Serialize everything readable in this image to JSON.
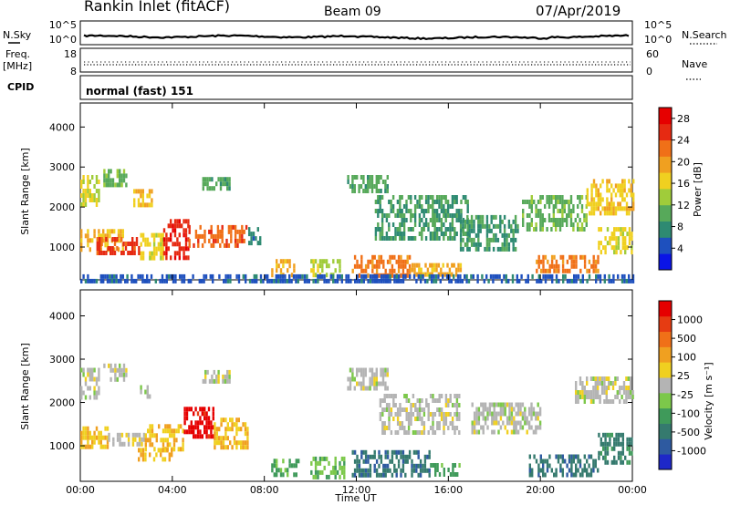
{
  "header": {
    "station": "Rankin Inlet (fitACF)",
    "beam": "Beam 09",
    "date": "07/Apr/2019"
  },
  "info_panels": {
    "nsky_label": "N.Sky",
    "nsky_ticks": [
      "10^5",
      "10^0"
    ],
    "nsearch_label": "N.Search",
    "nsearch_ticks": [
      "10^5",
      "10^0"
    ],
    "freq_label_1": "Freq.",
    "freq_label_2": "[MHz]",
    "freq_ticks": [
      "18",
      "8"
    ],
    "nave_label": "Nave",
    "nave_ticks": [
      "60",
      "0"
    ],
    "cpid_label": "CPID",
    "cpid_value": "normal (fast) 151"
  },
  "chart_data": [
    {
      "type": "heatmap",
      "title": "",
      "xlabel": "Time UT",
      "ylabel": "Slant Range [km]",
      "xlim": [
        "00:00",
        "24:00"
      ],
      "ylim": [
        180,
        4600
      ],
      "x_ticks": [
        "00:00",
        "04:00",
        "08:00",
        "12:00",
        "16:00",
        "20:00",
        "00:00"
      ],
      "y_ticks": [
        "1000",
        "2000",
        "3000",
        "4000"
      ],
      "colorbar": {
        "label": "Power [dB]",
        "ticks": [
          "4",
          "8",
          "12",
          "16",
          "20",
          "24",
          "28"
        ],
        "range": [
          0,
          30
        ],
        "colors": [
          "#0a14e6",
          "#1e50be",
          "#2e8a72",
          "#57a95a",
          "#a0cc3a",
          "#f0d020",
          "#f0a020",
          "#f07018",
          "#e62a12",
          "#e60000"
        ]
      },
      "regions": [
        {
          "t0": 0.0,
          "t1": 1.9,
          "r0": 900,
          "r1": 1450,
          "v": 18
        },
        {
          "t0": 0.7,
          "t1": 2.6,
          "r0": 900,
          "r1": 1250,
          "v": 25
        },
        {
          "t0": 2.6,
          "t1": 3.6,
          "r0": 700,
          "r1": 1350,
          "v": 16
        },
        {
          "t0": 3.6,
          "t1": 4.7,
          "r0": 700,
          "r1": 1700,
          "v": 26
        },
        {
          "t0": 4.7,
          "t1": 7.2,
          "r0": 1000,
          "r1": 1550,
          "v": 23
        },
        {
          "t0": 0.0,
          "t1": 0.8,
          "r0": 2100,
          "r1": 2800,
          "v": 15
        },
        {
          "t0": 1.0,
          "t1": 2.0,
          "r0": 2500,
          "r1": 2950,
          "v": 11
        },
        {
          "t0": 2.3,
          "t1": 3.1,
          "r0": 2100,
          "r1": 2450,
          "v": 18
        },
        {
          "t0": 5.3,
          "t1": 6.5,
          "r0": 2500,
          "r1": 2750,
          "v": 10
        },
        {
          "t0": 7.3,
          "t1": 7.8,
          "r0": 1100,
          "r1": 1500,
          "v": 7
        },
        {
          "t0": 8.3,
          "t1": 9.3,
          "r0": 350,
          "r1": 700,
          "v": 19
        },
        {
          "t0": 10.0,
          "t1": 11.3,
          "r0": 300,
          "r1": 700,
          "v": 14
        },
        {
          "t0": 11.8,
          "t1": 14.3,
          "r0": 300,
          "r1": 800,
          "v": 22
        },
        {
          "t0": 14.3,
          "t1": 16.5,
          "r0": 300,
          "r1": 600,
          "v": 19
        },
        {
          "t0": 11.6,
          "t1": 13.4,
          "r0": 2350,
          "r1": 2800,
          "v": 10
        },
        {
          "t0": 12.8,
          "t1": 16.8,
          "r0": 1200,
          "r1": 2300,
          "v": 9
        },
        {
          "t0": 16.5,
          "t1": 19.0,
          "r0": 900,
          "r1": 1800,
          "v": 9
        },
        {
          "t0": 19.2,
          "t1": 22.0,
          "r0": 1400,
          "r1": 2300,
          "v": 11
        },
        {
          "t0": 22.0,
          "t1": 24.0,
          "r0": 1900,
          "r1": 2700,
          "v": 17
        },
        {
          "t0": 22.5,
          "t1": 24.0,
          "r0": 900,
          "r1": 1500,
          "v": 16
        },
        {
          "t0": 19.8,
          "t1": 22.5,
          "r0": 400,
          "r1": 800,
          "v": 22
        },
        {
          "t0": 0.0,
          "t1": 24.0,
          "r0": 180,
          "r1": 320,
          "v": 5
        }
      ]
    },
    {
      "type": "heatmap",
      "title": "",
      "xlabel": "Time UT",
      "ylabel": "Slant Range [km]",
      "xlim": [
        "00:00",
        "24:00"
      ],
      "ylim": [
        180,
        4600
      ],
      "x_ticks": [
        "00:00",
        "04:00",
        "08:00",
        "12:00",
        "16:00",
        "20:00",
        "00:00"
      ],
      "y_ticks": [
        "1000",
        "2000",
        "3000",
        "4000"
      ],
      "colorbar": {
        "label": "Velocity [m s⁻¹]",
        "ticks": [
          "1000",
          "500",
          "100",
          "25",
          "-25",
          "-100",
          "-500",
          "-1000"
        ],
        "range": [
          -1200,
          1200
        ],
        "colors": [
          "#1e28c8",
          "#2e5aa0",
          "#357a6e",
          "#3f9a5a",
          "#7cc84a",
          "#b4b4b4",
          "#f0d020",
          "#f0a020",
          "#f07018",
          "#e63c12",
          "#e60000"
        ]
      },
      "regions": [
        {
          "t0": 0.0,
          "t1": 1.2,
          "r0": 1000,
          "r1": 1450,
          "v": 300
        },
        {
          "t0": 1.2,
          "t1": 2.8,
          "r0": 1000,
          "r1": 1300,
          "v": 50
        },
        {
          "t0": 2.8,
          "t1": 4.5,
          "r0": 900,
          "r1": 1500,
          "v": 300
        },
        {
          "t0": 4.5,
          "t1": 5.8,
          "r0": 1200,
          "r1": 1900,
          "v": 1100
        },
        {
          "t0": 5.8,
          "t1": 7.3,
          "r0": 1000,
          "r1": 1650,
          "v": 300
        },
        {
          "t0": 2.5,
          "t1": 4.0,
          "r0": 650,
          "r1": 950,
          "v": 300
        },
        {
          "t0": 0.0,
          "t1": 0.8,
          "r0": 2100,
          "r1": 2800,
          "v": 0
        },
        {
          "t0": 1.0,
          "t1": 2.0,
          "r0": 2500,
          "r1": 2900,
          "v": 0
        },
        {
          "t0": 2.5,
          "t1": 3.1,
          "r0": 2100,
          "r1": 2400,
          "v": 0
        },
        {
          "t0": 5.3,
          "t1": 6.5,
          "r0": 2500,
          "r1": 2750,
          "v": 0
        },
        {
          "t0": 8.3,
          "t1": 9.5,
          "r0": 300,
          "r1": 700,
          "v": -400
        },
        {
          "t0": 10.0,
          "t1": 11.5,
          "r0": 300,
          "r1": 750,
          "v": -300
        },
        {
          "t0": 11.8,
          "t1": 15.2,
          "r0": 300,
          "r1": 900,
          "v": -700
        },
        {
          "t0": 15.2,
          "t1": 16.5,
          "r0": 300,
          "r1": 600,
          "v": -400
        },
        {
          "t0": 11.6,
          "t1": 13.4,
          "r0": 2350,
          "r1": 2800,
          "v": 0
        },
        {
          "t0": 13.0,
          "t1": 16.5,
          "r0": 1300,
          "r1": 2200,
          "v": 0
        },
        {
          "t0": 17.0,
          "t1": 20.0,
          "r0": 1300,
          "r1": 2000,
          "v": 0
        },
        {
          "t0": 21.5,
          "t1": 24.0,
          "r0": 2000,
          "r1": 2600,
          "v": 0
        },
        {
          "t0": 19.5,
          "t1": 22.5,
          "r0": 350,
          "r1": 800,
          "v": -700
        },
        {
          "t0": 22.5,
          "t1": 24.0,
          "r0": 600,
          "r1": 1300,
          "v": -600
        }
      ]
    }
  ]
}
